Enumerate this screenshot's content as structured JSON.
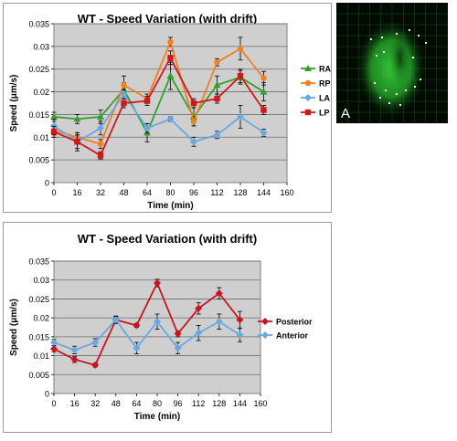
{
  "colors": {
    "plot_bg": "#cfcfcf",
    "RA": "#33a02c",
    "RP": "#f08020",
    "LA": "#6aa8e0",
    "LP": "#d01818",
    "Posterior": "#c8141e",
    "Anterior": "#6aa8e0"
  },
  "image_panel": {
    "label": "A"
  },
  "chart_data": [
    {
      "type": "line",
      "title": "WT - Speed Variation (with drift)",
      "xlabel": "Time (min)",
      "ylabel": "Speed (μm/s)",
      "xlim": [
        0,
        160
      ],
      "ylim": [
        0,
        0.035
      ],
      "xticks": [
        "0",
        "16",
        "32",
        "48",
        "64",
        "80",
        "96",
        "112",
        "128",
        "144",
        "160"
      ],
      "yticks": [
        "0",
        "0.005",
        "0.01",
        "0.015",
        "0.02",
        "0.025",
        "0.03",
        "0.035"
      ],
      "grid": true,
      "legend": "right",
      "series": [
        {
          "name": "RA",
          "color_key": "RA",
          "marker": "triangle",
          "x": [
            0,
            16,
            32,
            48,
            64,
            80,
            96,
            112,
            128,
            144
          ],
          "y": [
            0.0145,
            0.014,
            0.0145,
            0.0205,
            0.011,
            0.0235,
            0.0145,
            0.0215,
            0.0232,
            0.02
          ],
          "err": [
            0.001,
            0.001,
            0.0015,
            0.0015,
            0.002,
            0.003,
            0.002,
            0.002,
            0.0015,
            0.002
          ]
        },
        {
          "name": "RP",
          "color_key": "RP",
          "marker": "circle",
          "x": [
            0,
            16,
            32,
            48,
            64,
            80,
            96,
            112,
            128,
            144
          ],
          "y": [
            0.0115,
            0.01,
            0.0085,
            0.0215,
            0.0185,
            0.031,
            0.0135,
            0.0265,
            0.0295,
            0.023
          ],
          "err": [
            0.001,
            0.001,
            0.001,
            0.002,
            0.001,
            0.001,
            0.001,
            0.0008,
            0.0025,
            0.0015
          ]
        },
        {
          "name": "LA",
          "color_key": "LA",
          "marker": "diamond",
          "x": [
            0,
            16,
            32,
            48,
            64,
            80,
            96,
            112,
            128,
            144
          ],
          "y": [
            0.0125,
            0.009,
            0.012,
            0.0195,
            0.012,
            0.014,
            0.009,
            0.0105,
            0.0145,
            0.011
          ],
          "err": [
            0.0015,
            0.002,
            0.0015,
            0.001,
            0.001,
            0.0005,
            0.001,
            0.0008,
            0.0025,
            0.0008
          ]
        },
        {
          "name": "LP",
          "color_key": "LP",
          "marker": "square",
          "x": [
            0,
            16,
            32,
            48,
            64,
            80,
            96,
            112,
            128,
            144
          ],
          "y": [
            0.0112,
            0.009,
            0.006,
            0.0175,
            0.018,
            0.0275,
            0.0175,
            0.0185,
            0.0235,
            0.016
          ],
          "err": [
            0.0012,
            0.0015,
            0.0008,
            0.001,
            0.001,
            0.0015,
            0.001,
            0.001,
            0.0015,
            0.001
          ]
        }
      ]
    },
    {
      "type": "line",
      "title": "WT - Speed Variation (with drift)",
      "xlabel": "Time (min)",
      "ylabel": "Speed (μm/s)",
      "xlim": [
        0,
        160
      ],
      "ylim": [
        0,
        0.035
      ],
      "xticks": [
        "0",
        "16",
        "32",
        "48",
        "64",
        "80",
        "96",
        "112",
        "128",
        "144",
        "160"
      ],
      "yticks": [
        "0",
        "0.005",
        "0.01",
        "0.015",
        "0.02",
        "0.025",
        "0.03",
        "0.035"
      ],
      "grid": true,
      "legend": "right",
      "series": [
        {
          "name": "Posterior",
          "color_key": "Posterior",
          "marker": "diamond",
          "x": [
            0,
            16,
            32,
            48,
            64,
            80,
            96,
            112,
            128,
            144
          ],
          "y": [
            0.0118,
            0.009,
            0.0075,
            0.0195,
            0.018,
            0.0292,
            0.0158,
            0.0225,
            0.0265,
            0.0195
          ],
          "err": [
            0.0008,
            0.0008,
            0.0005,
            0.0008,
            0.0005,
            0.001,
            0.0008,
            0.0015,
            0.0015,
            0.0022
          ]
        },
        {
          "name": "Anterior",
          "color_key": "Anterior",
          "marker": "diamond",
          "x": [
            0,
            16,
            32,
            48,
            64,
            80,
            96,
            112,
            128,
            144
          ],
          "y": [
            0.0135,
            0.0115,
            0.0135,
            0.0195,
            0.012,
            0.019,
            0.012,
            0.016,
            0.019,
            0.0155
          ],
          "err": [
            0.0008,
            0.001,
            0.001,
            0.001,
            0.0015,
            0.002,
            0.0015,
            0.002,
            0.002,
            0.0018
          ]
        }
      ]
    }
  ]
}
